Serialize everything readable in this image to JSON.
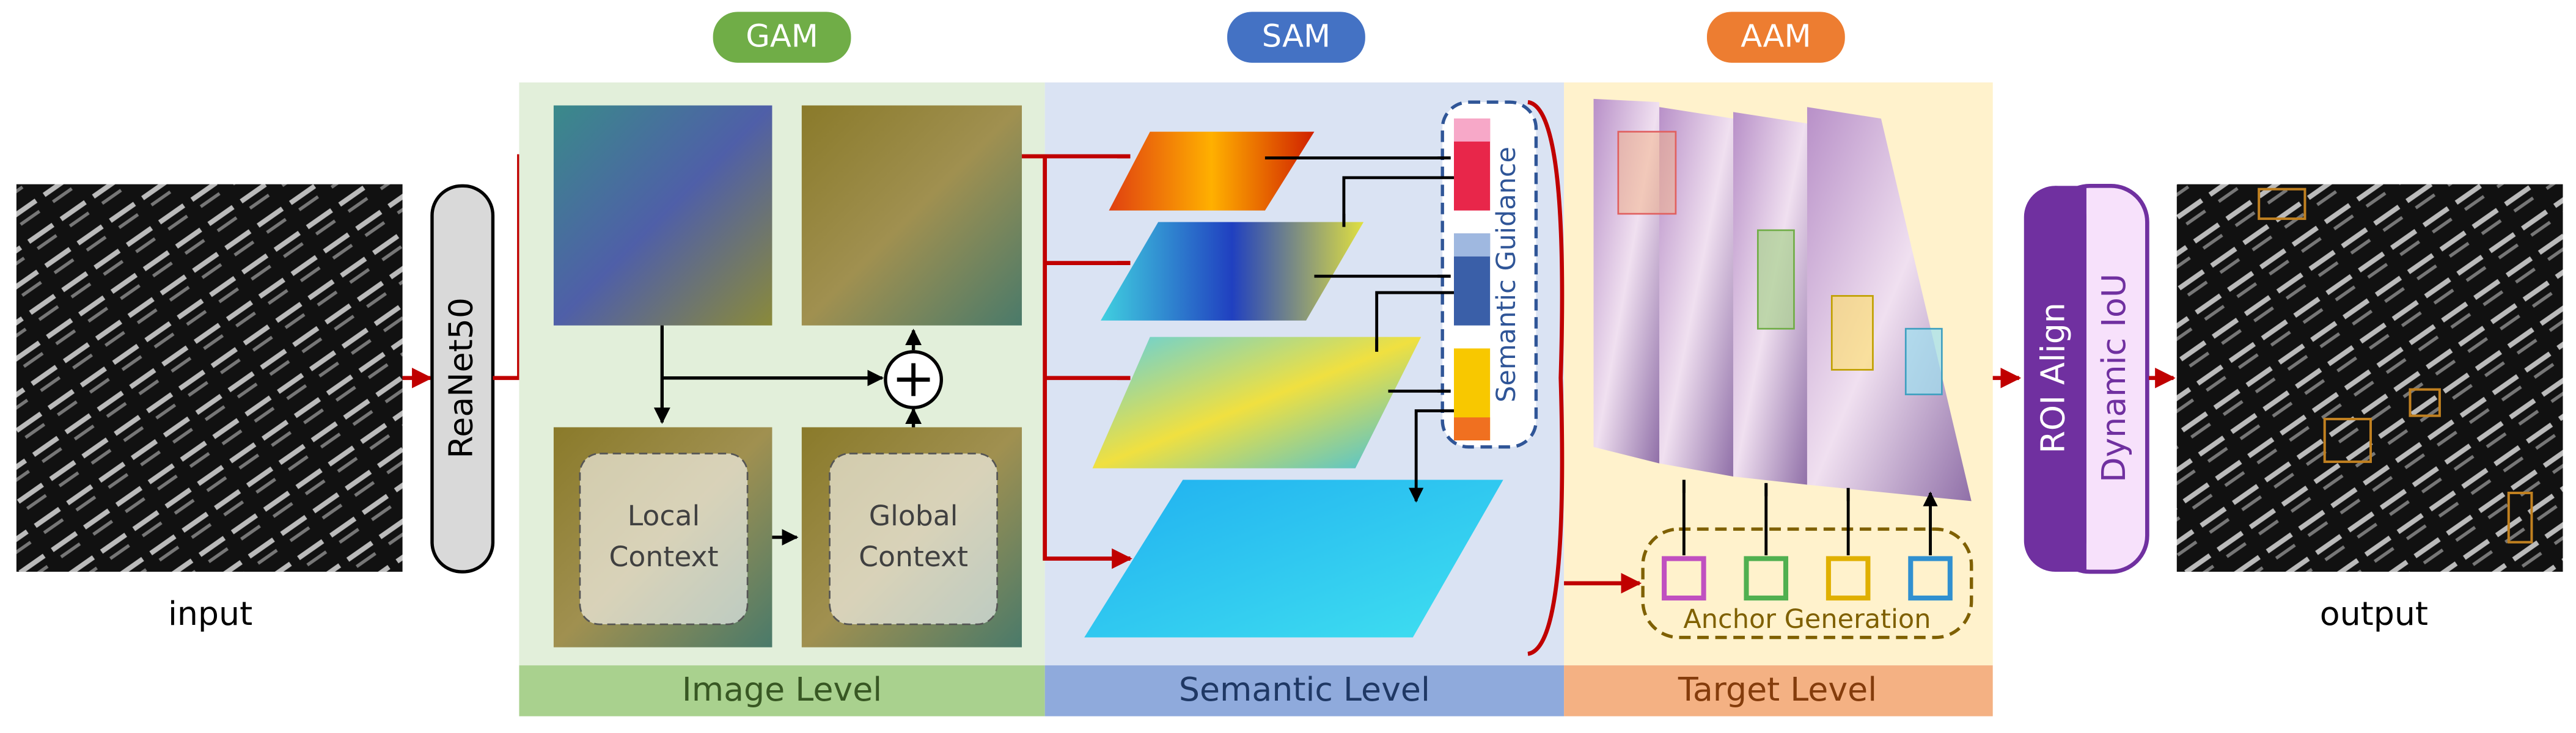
{
  "modules": {
    "gam": "GAM",
    "sam": "SAM",
    "aam": "AAM"
  },
  "input_label": "input",
  "output_label": "output",
  "backbone": "ReaNet50",
  "image_level": {
    "local_context": [
      "Local",
      "Context"
    ],
    "global_context": [
      "Global",
      "Context"
    ]
  },
  "semantic_guidance": "Semantic Guidance",
  "anchor_generation": "Anchor Generation",
  "levels": [
    "Image Level",
    "Semantic Level",
    "Target Level"
  ],
  "roi_align": "ROI Align",
  "dynamic_iou": "Dynamic IoU"
}
